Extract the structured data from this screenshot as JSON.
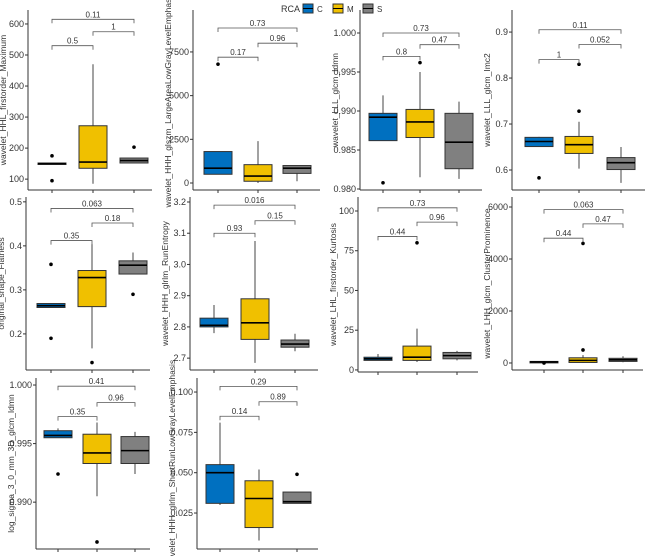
{
  "legend": {
    "title": "RCA",
    "items": [
      {
        "label": "C",
        "color": "#0070C0"
      },
      {
        "label": "M",
        "color": "#F0C000"
      },
      {
        "label": "S",
        "color": "#808080"
      }
    ],
    "placement": "top"
  },
  "chart_data": [
    {
      "type": "box",
      "ylabel": "wavelet_HHL_firstorder_Maximum",
      "yticks": [
        "100",
        "200",
        "300",
        "400",
        "500",
        "600"
      ],
      "ytick_values": [
        100,
        200,
        300,
        400,
        500,
        600
      ],
      "ylim": [
        65,
        645
      ],
      "groups": [
        {
          "name": "C",
          "lw": 148,
          "q1": 148,
          "med": 150,
          "q3": 152,
          "uw": 152,
          "out": [
            95,
            175
          ]
        },
        {
          "name": "M",
          "lw": 85,
          "q1": 135,
          "med": 155,
          "q3": 272,
          "uw": 470,
          "out": []
        },
        {
          "name": "S",
          "lw": 152,
          "q1": 152,
          "med": 160,
          "q3": 168,
          "uw": 168,
          "out": [
            203
          ]
        }
      ],
      "comparisons": [
        {
          "pair": [
            0,
            1
          ],
          "p": "0.5",
          "y": 530
        },
        {
          "pair": [
            1,
            2
          ],
          "p": "1",
          "y": 575
        },
        {
          "pair": [
            0,
            2
          ],
          "p": "0.11",
          "y": 615
        }
      ]
    },
    {
      "type": "box",
      "ylabel": "wavelet_HHH_glszm_LargeAreaLowGrayLevelEmphasis",
      "yticks": [
        "0",
        "2500",
        "5000",
        "7500"
      ],
      "ytick_values": [
        0,
        2500,
        5000,
        7500
      ],
      "ylim": [
        -400,
        9900
      ],
      "groups": [
        {
          "name": "C",
          "lw": 500,
          "q1": 500,
          "med": 850,
          "q3": 1800,
          "uw": 1800,
          "out": [
            6800
          ]
        },
        {
          "name": "M",
          "lw": 0,
          "q1": 100,
          "med": 400,
          "q3": 1050,
          "uw": 2400,
          "out": []
        },
        {
          "name": "S",
          "lw": 100,
          "q1": 550,
          "med": 850,
          "q3": 1000,
          "uw": 1000,
          "out": []
        }
      ],
      "comparisons": [
        {
          "pair": [
            0,
            1
          ],
          "p": "0.17",
          "y": 7200
        },
        {
          "pair": [
            1,
            2
          ],
          "p": "0.96",
          "y": 8000
        },
        {
          "pair": [
            0,
            2
          ],
          "p": "0.73",
          "y": 8870
        }
      ]
    },
    {
      "type": "box",
      "ylabel": "wavelet_LLL_glcm_Idmn",
      "yticks": [
        "0.980",
        "0.985",
        "0.990",
        "0.995",
        "1.000"
      ],
      "ytick_values": [
        0.98,
        0.985,
        0.99,
        0.995,
        1.0
      ],
      "ylim": [
        0.97987,
        1.00295
      ],
      "groups": [
        {
          "name": "C",
          "lw": 0.9862,
          "q1": 0.9862,
          "med": 0.9892,
          "q3": 0.9897,
          "uw": 0.992,
          "out": [
            0.9808
          ]
        },
        {
          "name": "M",
          "lw": 0.9815,
          "q1": 0.9866,
          "med": 0.9886,
          "q3": 0.9902,
          "uw": 0.995,
          "out": [
            0.9962
          ]
        },
        {
          "name": "S",
          "lw": 0.9813,
          "q1": 0.9826,
          "med": 0.986,
          "q3": 0.9897,
          "uw": 0.9912,
          "out": []
        }
      ],
      "comparisons": [
        {
          "pair": [
            0,
            1
          ],
          "p": "0.8",
          "y": 0.997
        },
        {
          "pair": [
            1,
            2
          ],
          "p": "0.47",
          "y": 0.9985
        },
        {
          "pair": [
            0,
            2
          ],
          "p": "0.73",
          "y": 1.0
        }
      ]
    },
    {
      "type": "box",
      "ylabel": "wavelet_LLL_glcm_Imc2",
      "yticks": [
        "0.6",
        "0.7",
        "0.8",
        "0.9"
      ],
      "ytick_values": [
        0.6,
        0.7,
        0.8,
        0.9
      ],
      "ylim": [
        0.5565,
        0.948
      ],
      "groups": [
        {
          "name": "C",
          "lw": 0.651,
          "q1": 0.651,
          "med": 0.662,
          "q3": 0.671,
          "uw": 0.672,
          "out": [
            0.583
          ]
        },
        {
          "name": "M",
          "lw": 0.603,
          "q1": 0.636,
          "med": 0.655,
          "q3": 0.673,
          "uw": 0.705,
          "out": [
            0.728,
            0.83
          ]
        },
        {
          "name": "S",
          "lw": 0.572,
          "q1": 0.601,
          "med": 0.616,
          "q3": 0.627,
          "uw": 0.65,
          "out": []
        }
      ],
      "comparisons": [
        {
          "pair": [
            0,
            1
          ],
          "p": "1",
          "y": 0.84
        },
        {
          "pair": [
            1,
            2
          ],
          "p": "0.052",
          "y": 0.873
        },
        {
          "pair": [
            0,
            2
          ],
          "p": "0.11",
          "y": 0.905
        }
      ]
    },
    {
      "type": "box",
      "ylabel": "original_shape_Flatness",
      "yticks": [
        "0.2",
        "0.3",
        "0.4",
        "0.5"
      ],
      "ytick_values": [
        0.2,
        0.3,
        0.4,
        0.5
      ],
      "ylim": [
        0.118,
        0.511
      ],
      "groups": [
        {
          "name": "C",
          "lw": 0.26,
          "q1": 0.26,
          "med": 0.264,
          "q3": 0.269,
          "uw": 0.269,
          "out": [
            0.19,
            0.358
          ]
        },
        {
          "name": "M",
          "lw": 0.167,
          "q1": 0.262,
          "med": 0.328,
          "q3": 0.344,
          "uw": 0.404,
          "out": [
            0.135
          ]
        },
        {
          "name": "S",
          "lw": 0.336,
          "q1": 0.336,
          "med": 0.356,
          "q3": 0.366,
          "uw": 0.385,
          "out": [
            0.29
          ]
        }
      ],
      "comparisons": [
        {
          "pair": [
            0,
            1
          ],
          "p": "0.35",
          "y": 0.412
        },
        {
          "pair": [
            1,
            2
          ],
          "p": "0.18",
          "y": 0.452
        },
        {
          "pair": [
            0,
            2
          ],
          "p": "0.063",
          "y": 0.485
        }
      ]
    },
    {
      "type": "box",
      "ylabel": "wavelet_HHH_glrlm_RunEntropy",
      "yticks": [
        "2.7",
        "2.8",
        "2.9",
        "3.0",
        "3.1",
        "3.2"
      ],
      "ytick_values": [
        2.7,
        2.8,
        2.9,
        3.0,
        3.1,
        3.2
      ],
      "ylim": [
        2.662,
        3.216
      ],
      "groups": [
        {
          "name": "C",
          "lw": 2.78,
          "q1": 2.8,
          "med": 2.805,
          "q3": 2.828,
          "uw": 2.87,
          "out": []
        },
        {
          "name": "M",
          "lw": 2.685,
          "q1": 2.76,
          "med": 2.813,
          "q3": 2.89,
          "uw": 3.075,
          "out": []
        },
        {
          "name": "S",
          "lw": 2.722,
          "q1": 2.735,
          "med": 2.745,
          "q3": 2.758,
          "uw": 2.778,
          "out": []
        }
      ],
      "comparisons": [
        {
          "pair": [
            0,
            1
          ],
          "p": "0.93",
          "y": 3.1
        },
        {
          "pair": [
            1,
            2
          ],
          "p": "0.15",
          "y": 3.14
        },
        {
          "pair": [
            0,
            2
          ],
          "p": "0.016",
          "y": 3.19
        }
      ]
    },
    {
      "type": "box",
      "ylabel": "wavelet_LHL_firstorder_Kurtosis",
      "yticks": [
        "0",
        "25",
        "50",
        "75",
        "100"
      ],
      "ytick_values": [
        0,
        25,
        50,
        75,
        100
      ],
      "ylim": [
        -1.3,
        108.8
      ],
      "groups": [
        {
          "name": "C",
          "lw": 6,
          "q1": 6,
          "med": 7,
          "q3": 8,
          "uw": 10,
          "out": []
        },
        {
          "name": "M",
          "lw": 5,
          "q1": 6,
          "med": 8,
          "q3": 15,
          "uw": 26,
          "out": [
            80
          ]
        },
        {
          "name": "S",
          "lw": 6,
          "q1": 7,
          "med": 9,
          "q3": 11,
          "uw": 12,
          "out": []
        }
      ],
      "comparisons": [
        {
          "pair": [
            0,
            1
          ],
          "p": "0.44",
          "y": 84
        },
        {
          "pair": [
            1,
            2
          ],
          "p": "0.96",
          "y": 93
        },
        {
          "pair": [
            0,
            2
          ],
          "p": "0.73",
          "y": 102
        }
      ]
    },
    {
      "type": "box",
      "ylabel": "wavelet_LHH_glcm_ClusterProminence",
      "yticks": [
        "0",
        "2000",
        "4000",
        "6000"
      ],
      "ytick_values": [
        0,
        2000,
        4000,
        6000
      ],
      "ylim": [
        -270,
        6385
      ],
      "groups": [
        {
          "name": "C",
          "lw": 20,
          "q1": 20,
          "med": 40,
          "q3": 60,
          "uw": 60,
          "out": [
            0
          ]
        },
        {
          "name": "M",
          "lw": 0,
          "q1": 20,
          "med": 100,
          "q3": 200,
          "uw": 300,
          "out": [
            500,
            4600
          ]
        },
        {
          "name": "S",
          "lw": 30,
          "q1": 60,
          "med": 120,
          "q3": 180,
          "uw": 260,
          "out": []
        }
      ],
      "comparisons": [
        {
          "pair": [
            0,
            1
          ],
          "p": "0.44",
          "y": 4800
        },
        {
          "pair": [
            1,
            2
          ],
          "p": "0.47",
          "y": 5350
        },
        {
          "pair": [
            0,
            2
          ],
          "p": "0.063",
          "y": 5900
        }
      ]
    },
    {
      "type": "box",
      "ylabel": "log_sigma_3_0_mm_3D_glcm_Idmn",
      "yticks": [
        "0.990",
        "0.995",
        "1.000"
      ],
      "ytick_values": [
        0.99,
        0.995,
        1.0
      ],
      "ylim": [
        0.986,
        1.0006
      ],
      "groups": [
        {
          "name": "C",
          "lw": 0.9955,
          "q1": 0.9955,
          "med": 0.9957,
          "q3": 0.9961,
          "uw": 0.9963,
          "out": [
            0.9924
          ]
        },
        {
          "name": "M",
          "lw": 0.9905,
          "q1": 0.9933,
          "med": 0.9942,
          "q3": 0.9958,
          "uw": 0.9968,
          "out": [
            0.9866
          ]
        },
        {
          "name": "S",
          "lw": 0.9924,
          "q1": 0.9933,
          "med": 0.9944,
          "q3": 0.9956,
          "uw": 0.996,
          "out": []
        }
      ],
      "comparisons": [
        {
          "pair": [
            0,
            1
          ],
          "p": "0.35",
          "y": 0.9973
        },
        {
          "pair": [
            1,
            2
          ],
          "p": "0.96",
          "y": 0.9985
        },
        {
          "pair": [
            0,
            2
          ],
          "p": "0.41",
          "y": 0.9999
        }
      ]
    },
    {
      "type": "box",
      "ylabel": "wavelet_HHH_glrlm_ShortRunLowGrayLevelEmphasis",
      "yticks": [
        "0.025",
        "0.050",
        "0.075",
        "0.100"
      ],
      "ytick_values": [
        0.025,
        0.05,
        0.075,
        0.1
      ],
      "ylim": [
        0.0027,
        0.1087
      ],
      "groups": [
        {
          "name": "C",
          "lw": 0.03,
          "q1": 0.031,
          "med": 0.05,
          "q3": 0.055,
          "uw": 0.081,
          "out": []
        },
        {
          "name": "M",
          "lw": 0.008,
          "q1": 0.016,
          "med": 0.034,
          "q3": 0.045,
          "uw": 0.052,
          "out": []
        },
        {
          "name": "S",
          "lw": 0.031,
          "q1": 0.031,
          "med": 0.032,
          "q3": 0.038,
          "uw": 0.038,
          "out": [
            0.049
          ]
        }
      ],
      "comparisons": [
        {
          "pair": [
            0,
            1
          ],
          "p": "0.14",
          "y": 0.085
        },
        {
          "pair": [
            1,
            2
          ],
          "p": "0.89",
          "y": 0.094
        },
        {
          "pair": [
            0,
            2
          ],
          "p": "0.29",
          "y": 0.1035
        }
      ]
    }
  ]
}
